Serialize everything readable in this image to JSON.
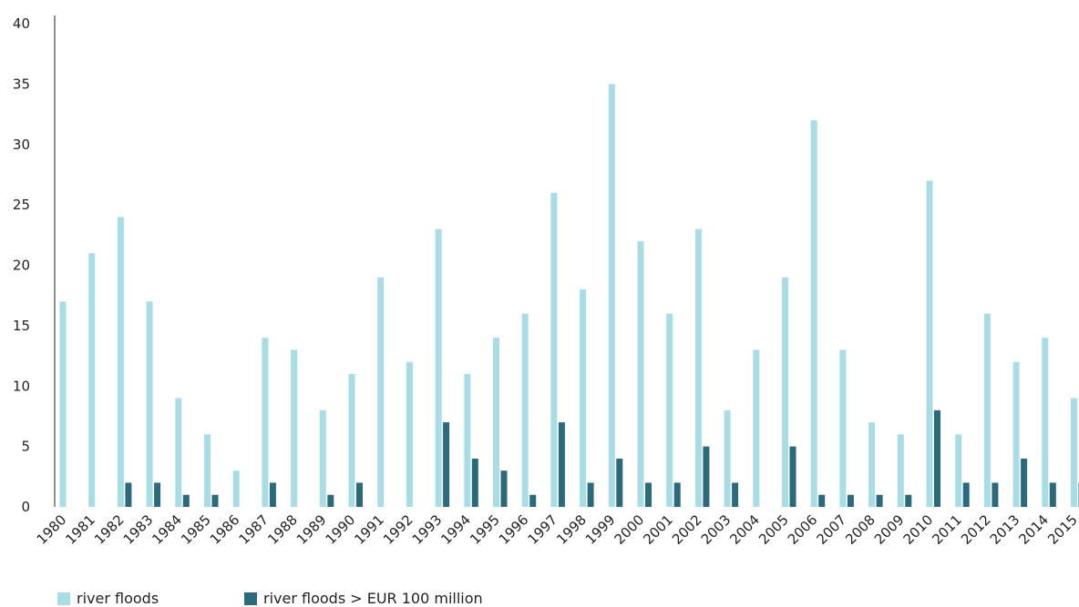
{
  "chart_data": {
    "type": "bar",
    "categories": [
      "1980",
      "1981",
      "1982",
      "1983",
      "1984",
      "1985",
      "1986",
      "1987",
      "1988",
      "1989",
      "1990",
      "1991",
      "1992",
      "1993",
      "1994",
      "1995",
      "1996",
      "1997",
      "1998",
      "1999",
      "2000",
      "2001",
      "2002",
      "2003",
      "2004",
      "2005",
      "2006",
      "2007",
      "2008",
      "2009",
      "2010",
      "2011",
      "2012",
      "2013",
      "2014",
      "2015"
    ],
    "series": [
      {
        "name": "river floods",
        "color": "#a8dde6",
        "values": [
          17,
          21,
          24,
          17,
          9,
          6,
          3,
          14,
          13,
          8,
          11,
          19,
          12,
          23,
          11,
          14,
          16,
          26,
          18,
          35,
          22,
          16,
          23,
          8,
          13,
          19,
          32,
          13,
          7,
          6,
          27,
          6,
          16,
          12,
          14,
          9
        ]
      },
      {
        "name": "river floods > EUR 100 million",
        "color": "#2b6a7b",
        "values": [
          0,
          0,
          2,
          2,
          1,
          1,
          0,
          2,
          0,
          1,
          2,
          0,
          0,
          7,
          4,
          3,
          1,
          7,
          2,
          4,
          2,
          2,
          5,
          2,
          0,
          5,
          1,
          1,
          1,
          1,
          8,
          2,
          2,
          4,
          2,
          2
        ]
      }
    ],
    "yticks": [
      "0",
      "5",
      "10",
      "15",
      "20",
      "25",
      "30",
      "35",
      "40"
    ],
    "ylim": [
      0,
      40
    ],
    "grid": false,
    "legend": "bottom-left"
  }
}
